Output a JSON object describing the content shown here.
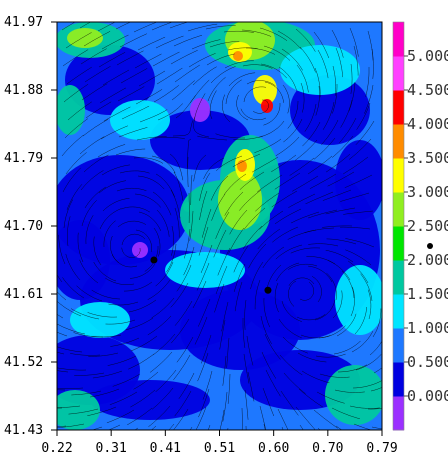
{
  "chart_data": {
    "type": "heatmap",
    "title": "",
    "xlabel": "",
    "ylabel": "",
    "xlim": [
      0.22,
      0.79
    ],
    "ylim": [
      41.43,
      41.97
    ],
    "x_ticks": [
      "0.22",
      "0.31",
      "0.41",
      "0.51",
      "0.60",
      "0.70",
      "0.79"
    ],
    "y_ticks": [
      "41.97",
      "41.88",
      "41.79",
      "41.70",
      "41.61",
      "41.52",
      "41.43"
    ],
    "overlay": "streamlines",
    "colorbar": {
      "labels": [
        "0.000",
        "0.500",
        "1.000",
        "1.500",
        "2.000",
        "2.500",
        "3.000",
        "3.500",
        "4.000",
        "4.500",
        "5.000"
      ],
      "colors": [
        "#9b30ff",
        "#0000e0",
        "#1e78ff",
        "#00e5ff",
        "#00c8a0",
        "#00e600",
        "#90ee20",
        "#ffff00",
        "#ff8c00",
        "#ff0000",
        "#ff40ff",
        "#ff00c8"
      ]
    },
    "markers": [
      {
        "x": 0.39,
        "y": 41.655
      },
      {
        "x": 0.59,
        "y": 41.615
      }
    ]
  }
}
